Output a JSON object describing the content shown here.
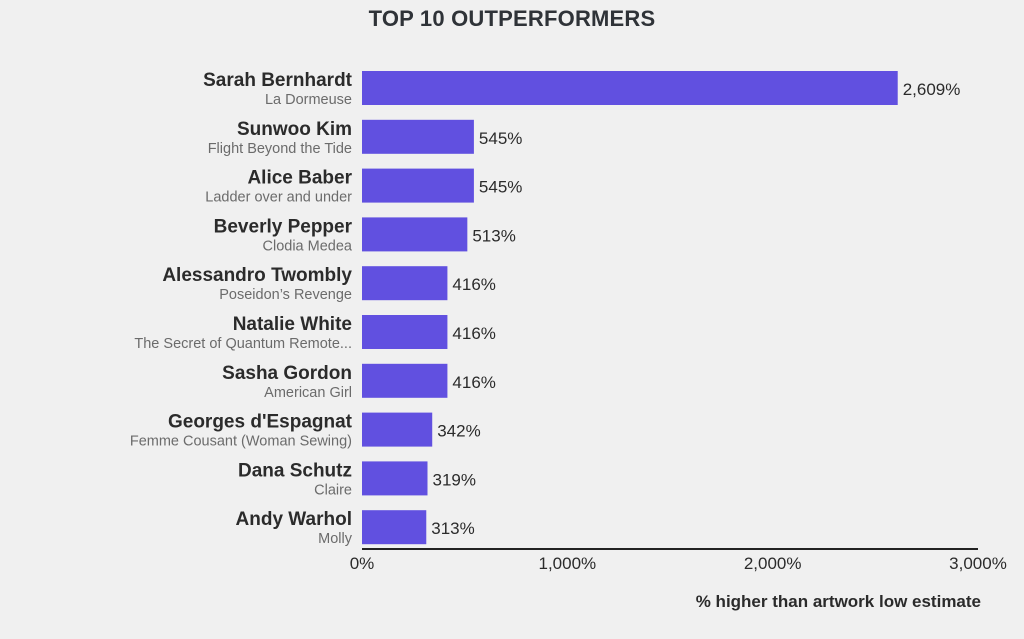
{
  "chart_data": {
    "type": "bar",
    "orientation": "horizontal",
    "title": "TOP 10 OUTPERFORMERS",
    "xlabel": "% higher than artwork low estimate",
    "ylabel": "",
    "xlim": [
      0,
      3000
    ],
    "xticks": [
      0,
      1000,
      2000,
      3000
    ],
    "xtick_labels": [
      "0%",
      "1,000%",
      "2,000%",
      "3,000%"
    ],
    "categories": [
      "Sarah Bernhardt",
      "Sunwoo Kim",
      "Alice Baber",
      "Beverly Pepper",
      "Alessandro Twombly",
      "Natalie White",
      "Sasha Gordon",
      "Georges d'Espagnat",
      "Dana Schutz",
      "Andy Warhol"
    ],
    "subtitles": [
      "La Dormeuse",
      "Flight Beyond the Tide",
      "Ladder over and under",
      "Clodia Medea",
      "Poseidon’s Revenge",
      "The Secret of Quantum Remote...",
      "American Girl",
      "Femme Cousant (Woman Sewing)",
      "Claire",
      "Molly"
    ],
    "values": [
      2609,
      545,
      545,
      513,
      416,
      416,
      416,
      342,
      319,
      313
    ],
    "value_labels": [
      "2,609%",
      "545%",
      "545%",
      "513%",
      "416%",
      "416%",
      "416%",
      "342%",
      "319%",
      "313%"
    ],
    "bar_color": "#6150e0",
    "grid": false
  }
}
